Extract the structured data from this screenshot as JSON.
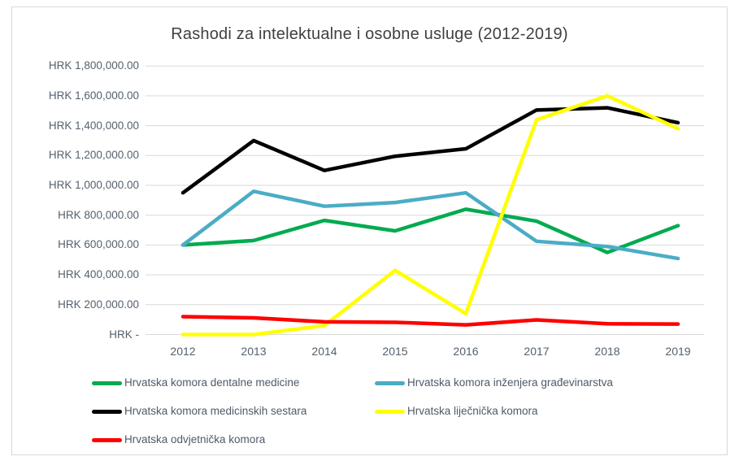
{
  "chart_data": {
    "type": "line",
    "title": "Rashodi za intelektualne i osobne usluge (2012-2019)",
    "categories": [
      "2012",
      "2013",
      "2014",
      "2015",
      "2016",
      "2017",
      "2018",
      "2019"
    ],
    "series": [
      {
        "name": "Hrvatska komora dentalne medicine",
        "color": "#00AB50",
        "values": [
          600000,
          630000,
          765000,
          695000,
          840000,
          760000,
          550000,
          730000
        ]
      },
      {
        "name": "Hrvatska komora inženjera građevinarstva",
        "color": "#4BACC6",
        "values": [
          600000,
          960000,
          860000,
          885000,
          950000,
          625000,
          590000,
          510000
        ]
      },
      {
        "name": "Hrvatska komora medicinskih sestara",
        "color": "#000000",
        "values": [
          950000,
          1300000,
          1100000,
          1195000,
          1245000,
          1505000,
          1520000,
          1420000
        ]
      },
      {
        "name": "Hrvatska liječnička komora",
        "color": "#FFFF00",
        "values": [
          0,
          0,
          60000,
          430000,
          140000,
          1440000,
          1600000,
          1380000
        ]
      },
      {
        "name": "Hrvatska odvjetnička komora",
        "color": "#FF0000",
        "values": [
          120000,
          112000,
          85000,
          82000,
          65000,
          98000,
          72000,
          70000
        ]
      }
    ],
    "y_axis": {
      "min": 0,
      "max": 1800000,
      "step": 200000,
      "tick_labels": [
        "HRK -",
        "HRK 200,000.00",
        "HRK 400,000.00",
        "HRK 600,000.00",
        "HRK 800,000.00",
        "HRK 1,000,000.00",
        "HRK 1,200,000.00",
        "HRK 1,400,000.00",
        "HRK 1,600,000.00",
        "HRK 1,800,000.00"
      ]
    },
    "grid": true,
    "gridline_color": "#d9d9d9",
    "legend_position": "bottom"
  }
}
